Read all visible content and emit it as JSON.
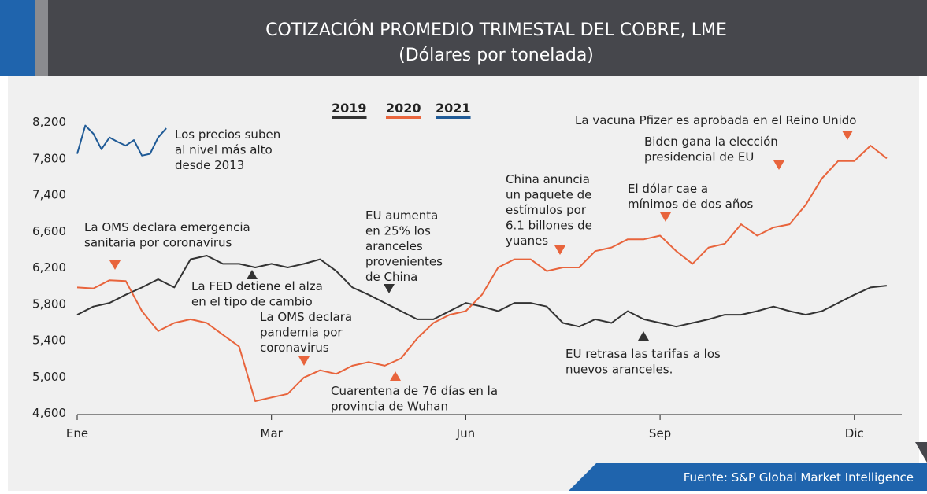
{
  "chart_data": {
    "type": "line",
    "title": "COTIZACIÓN PROMEDIO TRIMESTAL DEL COBRE, LME",
    "subtitle": "(Dólares por tonelada)",
    "source": "Fuente: S&P Global Market Intelligence",
    "xlim": [
      0,
      52
    ],
    "xticks": [
      {
        "value": 0,
        "label": "Ene"
      },
      {
        "value": 12,
        "label": "Mar"
      },
      {
        "value": 24,
        "label": "Jun"
      },
      {
        "value": 36,
        "label": "Sep"
      },
      {
        "value": 48,
        "label": "Dic"
      }
    ],
    "ylim": [
      4600,
      8200
    ],
    "yticks": [
      {
        "value": 4600,
        "label": "4,600"
      },
      {
        "value": 5000,
        "label": "5,000"
      },
      {
        "value": 5400,
        "label": "5,400"
      },
      {
        "value": 5800,
        "label": "5,800"
      },
      {
        "value": 6200,
        "label": "6,200"
      },
      {
        "value": 6600,
        "label": "6,600"
      },
      {
        "value": 7400,
        "label": "7,400"
      },
      {
        "value": 7800,
        "label": "7,800"
      },
      {
        "value": 8200,
        "label": "8,200"
      }
    ],
    "series": [
      {
        "name": "2019",
        "color": "#333333",
        "x": [
          0,
          1,
          2,
          3,
          4,
          5,
          6,
          7,
          8,
          9,
          10,
          11,
          12,
          13,
          14,
          15,
          16,
          17,
          18,
          19,
          20,
          21,
          22,
          23,
          24,
          25,
          26,
          27,
          28,
          29,
          30,
          31,
          32,
          33,
          34,
          35,
          36,
          37,
          38,
          39,
          40,
          41,
          42,
          43,
          44,
          45,
          46,
          47,
          48,
          49,
          50
        ],
        "values": [
          5680,
          5770,
          5810,
          5900,
          5980,
          6070,
          5980,
          6290,
          6330,
          6240,
          6240,
          6200,
          6240,
          6200,
          6240,
          6290,
          6160,
          5980,
          5900,
          5810,
          5720,
          5630,
          5630,
          5720,
          5810,
          5770,
          5720,
          5810,
          5810,
          5770,
          5590,
          5550,
          5630,
          5590,
          5720,
          5630,
          5590,
          5550,
          5590,
          5630,
          5680,
          5680,
          5720,
          5770,
          5720,
          5680,
          5720,
          5810,
          5900,
          5980,
          6000
        ]
      },
      {
        "name": "2020",
        "color": "#e8643c",
        "x": [
          0,
          1,
          2,
          3,
          4,
          5,
          6,
          7,
          8,
          9,
          10,
          11,
          12,
          13,
          14,
          15,
          16,
          17,
          18,
          19,
          20,
          21,
          22,
          23,
          24,
          25,
          26,
          27,
          28,
          29,
          30,
          31,
          32,
          33,
          34,
          35,
          36,
          37,
          38,
          39,
          40,
          41,
          42,
          43,
          44,
          45,
          46,
          47,
          48,
          49,
          50
        ],
        "values": [
          5980,
          5970,
          6060,
          6050,
          5720,
          5500,
          5590,
          5630,
          5590,
          5460,
          5330,
          4730,
          4770,
          4810,
          4990,
          5070,
          5030,
          5120,
          5160,
          5120,
          5200,
          5420,
          5590,
          5680,
          5720,
          5900,
          6200,
          6290,
          6290,
          6160,
          6200,
          6200,
          6380,
          6420,
          6510,
          6510,
          6550,
          6380,
          6240,
          6420,
          6460,
          6750,
          6550,
          6680,
          6750,
          7180,
          7580,
          7770,
          7770,
          7940,
          7800
        ]
      },
      {
        "name": "2021",
        "color": "#1f5a96",
        "x": [
          0,
          0.5,
          1,
          1.5,
          2,
          2.5,
          3,
          3.5,
          4,
          4.5,
          5,
          5.5
        ],
        "values": [
          7850,
          8160,
          8070,
          7900,
          8030,
          7980,
          7940,
          8000,
          7830,
          7850,
          8030,
          8130
        ]
      }
    ],
    "annotations": [
      {
        "lines": [
          "Los precios suben",
          "al nivel más alto",
          "desde 2013"
        ]
      },
      {
        "lines": [
          "La OMS declara emergencia",
          "sanitaria por coronavirus"
        ]
      },
      {
        "lines": [
          "La FED detiene el alza",
          "en el tipo de cambio"
        ]
      },
      {
        "lines": [
          "La OMS declara",
          "pandemia por",
          "coronavirus"
        ]
      },
      {
        "lines": [
          "EU aumenta",
          "en 25% los",
          "aranceles",
          "provenientes",
          "de China"
        ]
      },
      {
        "lines": [
          "Cuarentena de 76 días en la",
          "provincia de Wuhan"
        ]
      },
      {
        "lines": [
          "China anuncia",
          "un paquete de",
          "estímulos por",
          "6.1 billones de",
          "yuanes"
        ]
      },
      {
        "lines": [
          "EU retrasa las tarifas a los",
          "nuevos aranceles."
        ]
      },
      {
        "lines": [
          "El dólar cae a",
          "mínimos de dos años"
        ]
      },
      {
        "lines": [
          "Biden gana la elección",
          "presidencial de EU"
        ]
      },
      {
        "lines": [
          "La vacuna Pfizer es aprobada en el Reino Unido"
        ]
      }
    ]
  }
}
